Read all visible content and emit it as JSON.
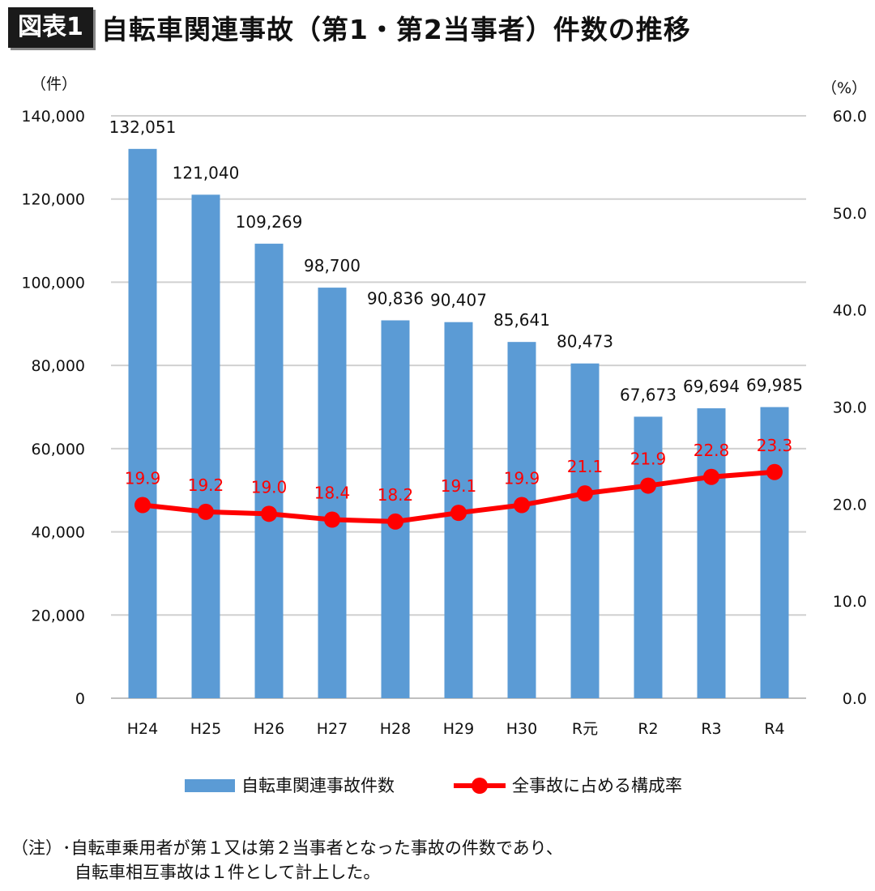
{
  "header": {
    "badge": "図表1",
    "title": "自転車関連事故（第1・第2当事者）件数の推移"
  },
  "chart_data": {
    "type": "bar+line",
    "categories": [
      "H24",
      "H25",
      "H26",
      "H27",
      "H28",
      "H29",
      "H30",
      "R元",
      "R2",
      "R3",
      "R4"
    ],
    "series": [
      {
        "name": "自転車関連事故件数",
        "type": "bar",
        "axis": "left",
        "color": "#5b9bd5",
        "values": [
          132051,
          121040,
          109269,
          98700,
          90836,
          90407,
          85641,
          80473,
          67673,
          69694,
          69985
        ],
        "labels": [
          "132,051",
          "121,040",
          "109,269",
          "98,700",
          "90,836",
          "90,407",
          "85,641",
          "80,473",
          "67,673",
          "69,694",
          "69,985"
        ]
      },
      {
        "name": "全事故に占める構成率",
        "type": "line",
        "axis": "right",
        "color": "#ff0000",
        "values": [
          19.9,
          19.2,
          19.0,
          18.4,
          18.2,
          19.1,
          19.9,
          21.1,
          21.9,
          22.8,
          23.3
        ],
        "labels": [
          "19.9",
          "19.2",
          "19.0",
          "18.4",
          "18.2",
          "19.1",
          "19.9",
          "21.1",
          "21.9",
          "22.8",
          "23.3"
        ]
      }
    ],
    "left_axis": {
      "unit": "（件）",
      "range": [
        0,
        140000
      ],
      "ticks": [
        "0",
        "20,000",
        "40,000",
        "60,000",
        "80,000",
        "100,000",
        "120,000",
        "140,000"
      ]
    },
    "right_axis": {
      "unit": "（%）",
      "range": [
        0,
        60
      ],
      "ticks": [
        "0.0",
        "10.0",
        "20.0",
        "30.0",
        "40.0",
        "50.0",
        "60.0"
      ]
    },
    "grid": true,
    "legend_position": "bottom"
  },
  "notes": {
    "line1": "（注）･自転車乗用者が第１又は第２当事者となった事故の件数であり、",
    "line2": "自転車相互事故は１件として計上した。"
  }
}
